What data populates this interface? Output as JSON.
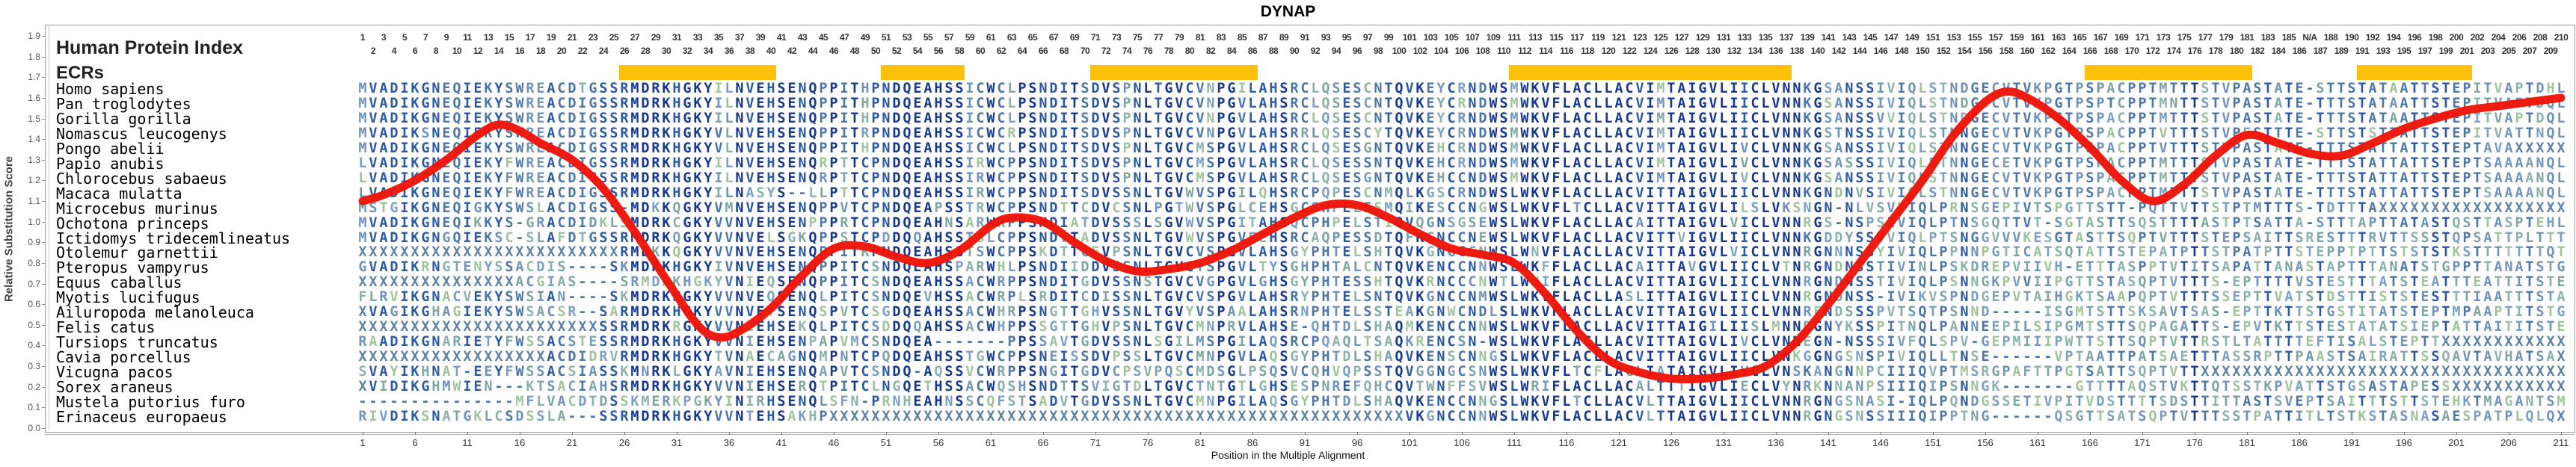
{
  "title": "DYNAP",
  "y_axis": {
    "label": "Relative Substitution Score",
    "min": 0.0,
    "max": 1.9,
    "step": 0.1
  },
  "x_axis": {
    "label": "Position in the Multiple Alignment",
    "tick_start": 1,
    "tick_step": 5,
    "tick_end": 211
  },
  "alignment": {
    "left_title": "Human Protein Index",
    "ecr_label": "ECRs",
    "columns": 211,
    "index_na_column": 187,
    "na_label": "N/A",
    "ecr_regions": [
      [
        26,
        40
      ],
      [
        51,
        58
      ],
      [
        71,
        86
      ],
      [
        111,
        137
      ],
      [
        166,
        181
      ],
      [
        192,
        202
      ]
    ],
    "species": [
      {
        "name": "Homo sapiens",
        "seq": "MVADIKGNEQIEKYSWREACDTGSSRMDRKHGKYILNVEHSENQPPITHPNDQEAHSSICWCLPSNDITSDVSPNLTGVCVNPGILAHSRCLQSESCNTQVKEYCRNDWSMWKVFLACLLACVIMTAIGVLIICLVNNKGSANSSIVIQLSTNDGECVTVKPGTPSPACPPTMTTTSTVPASTATE-STTSTATAATTSTEPITVAPTDHL"
      },
      {
        "name": "Pan troglodytes",
        "seq": "MVADIKGNEQIEKYSWREACDIGSSRMDRKHGKYILNVEHSENQPPITHPNDQEAHSSICWCLPSNDITSDVSPNLTGVCVNPGVLAHSRCLQSESCNTQVKEYCRNDWSMWKVFLACLLACVIMTAIGVLIICLVNNKGSANSSIVIQLSTNDGDCVTVKPGTPSPTCPPTMNTTSTVPASTATE-TTTSTATAATTSTEPITVAPTDQL"
      },
      {
        "name": "Gorilla gorilla",
        "seq": "MVADIKGNEQIEKYSWREACDIGSSRMDRKHGKYILNVEHSENQPPITHPNDQEAHSSICWCLPSNDITSDVSPNLTGVCVNPGVLAHSRCLQSESCNTQVKEYCRNDWSMWKVFLACLLACVIMTAIGVLIICLVNNKGSANSSVVIQLSTNDGECVTVKPGTPSPACPPTMTTTSTVPASTATE-TTTSTATAATTSTEPITVAPTDQL"
      },
      {
        "name": "Nomascus leucogenys",
        "seq": "MVADIKSNEQIEKYSWREACDIGSSRMDRKHGKYVLNVEHSENQPPITRPNDQEAHSSICWCRPSNDITSDVSPNLTGVCVNPGVLAHSRRLQSESCYTQVKEYCRNDWSMWKVFLACLLACVIMTAIGVLIICLVNNKGSTNSSIVIQLSTNNGECVTVKPGTPSPACPPTVTTTSTVPESTTTE-STTSTSTTATTSTEPITVATTNQL"
      },
      {
        "name": "Pongo abelii",
        "seq": "MVADIKGNEQIEKYSWREACDIGSSRMDRKHGKYVLNVEHSENQPPITHPNDQEAHSSICWCLPSNDITSDVSPNLTGVCMSPGVLAHSRCLQSESGNTQVKEHCRNDWSMWKVFLACLLACVIMTAIGVLIVCLVNNKGSANSSIVIQLSTNNGECVTVKPGTPSPACPPTVTTTSTVPASTATE-TTTSTATTATTSTEPTAVAXXXXX"
      },
      {
        "name": "Papio anubis",
        "seq": "LVADIKGNEQIEKYFWREACDIGSSRMDRKHGKYILNVEHSENQRPTTCPNDQEAHSSIRWCPPSNDITSDVSPNLTGVCMSPGVLAHSRCLQSESSNTQVKEHCRNDWSMWKVFLACLLACVIMTAIGVLIVCLVNNKGSASSSIVIQLSTNNGECETVKPGTPSPACPPTMTTTSTVPASTATE-TTTSTATTATTSTEPTSAAAANQL"
      },
      {
        "name": "Chlorocebus sabaeus",
        "seq": "LVADIKGNEQIEKYFWREACDIGSSRMDRKHGKYILNVEHSENQRPTTCPNDQEAHSSIRWCPPSNDITSDVSPNLTGVCMSPGVLAHSRCLQSESGNTQVKEHCCNDWSMWKVFLACLLACVIMTAIGVLIVCLVNNKGSANSSIVIQLSTNNGECVTVKPGTPSPACPPTMTTTSTVPASTATE-TTTSTATTATTSTEPTSAAAANQL"
      },
      {
        "name": "Macaca mulatta",
        "seq": "LVADIKGNEQIEKYFWREACDIGSSRMDRKHGKYILNASYS--LLPTTCPNDQEAHSSIRWCPPSNDITSDVSSNLTGVWVSPGILQHSRCPQPESCNMQLKGSCRNDWSLWKVFLACLLACVITTAIGVLIICLVNNKGNDNVSIVIQLSTNNGECVTVKPGTPSPACPPTMTTTSTVPASTATE-TTTSTATTATTSTEPTSAAAANQL"
      },
      {
        "name": "Microcebus murinus",
        "seq": "MSTGIKGNEQIGKYSWSLACDIGSS-MDKKQGKYVMNVEHSENQPPVTCPNDQEAPSSTRWCPPSNDTTCDVCSNLPGTWVSPGLCEHSGCSHPELSSMQIKESCCNGWSLWKVFLTCLLACVITTAIGVLILSLVKSNGN-NLVSVVIQLPRNSGEPIVTSPGTTSTT-PQTTVTTSTPTMTTTS-TDTTTAXXXXXXXXXXXXXXXXXX"
      },
      {
        "name": "Ochotona princeps",
        "seq": "MVADIKGNEQIKKYS-GRACDIDKLSMDRKCGKYVVNVEHSENPPPRTCPNDQEAHNSARWRPPSNDIATDVSSSLSGVWVSPGITAHSQCPHPELSTIQVQGNSGSEWSLWKVFLACLLACAITTAIGVLVICLVNNRGS-NSPSIVIQLPTNSGQTTVT-SGTASTTSQSTTTTASTPTSATTA-STTTAPTTATASTQSTTASPTEHL"
      },
      {
        "name": "Ictidomys tridecemlineatus",
        "seq": "MVADIKGNGQIEKSC-SLAFDTGSSRMDRKQGKYVVNVELSGKQPPSTCPDDQQAHSSTSLCPPSNDVTADVSSNLTGVWVSPGVFEHSRCAQPESSDTQFKGNCCNEWSLWKVFLACLLACVITTVIGVLIICLVNNKGDDYSSVVIQLPTSNGGVVVKESGTASTTSQPTVTTTSTEPSAITTSRESTTTRVTTSSSTQPSATTPLTTT"
      },
      {
        "name": "Otolemur garnettii",
        "seq": "XXXXXXXXXXXXXXXXXXXXXXXXXRMDKKQGKYVVNVEHSENQPPITRPNDQEAHSSTSWCPPSKDTTCEVPSNLTGVCVSPGVLAHSGYPHTELSHTQVKGNGCCNWSLWNVFLACLLACVITTAIGVLVICLVNNRGNNNSSYIVIQLPPNNPGTICATSQTATTSTEPATPTTSTPATPTTSTEPPTPTTSTSTSTKSTTTTTTTQT"
      },
      {
        "name": "Pteropus vampyrus",
        "seq": "GVADIKRNGTENYSSACDIS----SKMDRKHGKYIVNVEHSENQPPITCSNDQEAHSPARWHLPSNDIIDDVSSNLTGVCTSPGVLTYSGHPHTALCNTQVKENCCNNWSLWKFFLACLLACAITTAVGVLIICLVTNRGNDNSSTIVINLPSKDREPVIIVH-ETTTASPPTVTITSAPATTANASTAPTTTANATSTGPPTTANATSTG"
      },
      {
        "name": "Equus caballus",
        "seq": "XXXXXXXXXXXXXXXACGIAS----SRMDRKHGKYVNIEQSENQPPITCSNDQEAHSSACWRPPSNDITGDVSSNSTGVCVGPGVLGHSGYPHTESSHTQVKRNCCCNWTLWNIFLACLLACVITTAIGVLIICLVNNRGNDNSSTIVIQLPSNNGKPVVIIPGTTSTASQPTVTTTS-EPTTTTVSTESTTTATSTEATTTEATTITSTE"
      },
      {
        "name": "Myotis lucifugus",
        "seq": "FLRVIKGNACVEKYSWSIAN----SKMDRKHGKYVVNVEQSENQLPITCSNDQEVHSSACWRPLSRDITCDISSNLTGVCVSPGVLAHSRYPHTELSNTQVKGNCCNMWSLWKVFLACLLASLITTAIGVLIICLVNNRGNDNSS-IVIKVSPNDGEPVTAIHGKTSAAPQPTVTTTSSEPTTVATSTDSTTISTSTESTTTIAATTTSTA"
      },
      {
        "name": "Ailuropoda melanoleuca",
        "seq": "XVAGIKGHAGIEKYSWSACSR--SARMDRKHGKYVVNVEYSENQSPVTCSGDQEAHSSACWHRPSNGTTGHVSSNLTGVYVSPAALAHSRNPHTELSSTEAKGNWCNDLSLWKVFLACLLACVITTAIGVLIICLVNNRENDSSSPVTSQTPSNND-----ISGMTSTTSKSAVTSAS-EPTTKTTSTGSTITATSTEPTMPAAPTITSTG"
      },
      {
        "name": "Felis catus",
        "seq": "XXXXXXXXXXXXXXXXXXXXXXXSSRMDRKRGKYVVNIEHSEKQLPITCSDDQQAHSSACWHPPSSGTTGHVPSNLTGVCMNPRVLAHSE-QHTDLSHAQMKENCCNNWSLWKVFLACLLACVITTAIGILIISLMNNRGNYKSSPITNQLPANNEEPILSIPGMTSTTSQPAGATTS-EPVTKTTSTESTATATSIEPTATTAITITSTE"
      },
      {
        "name": "Tursiops truncatus",
        "seq": "RAADIKGNARIETYFWSSACSTESSRMDRKHGKYVVNIEHSENPAPVMCSNDQEA-------PPSSAVTGDVSSNLSGILMSPGILAQSRCPQAQLTSAQKRENCSN-WSLWKVFLACLLACVITTAIGVLIVCLVNNEGN-NSSSIVFQLSPV-GEPMIIIPWTTSTTSQPTVTTRSTLTATTTTEFTISALSTEPTTXXXXXXXXXXXX"
      },
      {
        "name": "Cavia porcellus",
        "seq": "XXXXXXXXXXXXXXXXXXACDIDRVRMDRKHGKYTVNAECAGNQMPNTCPQDQEAHSSTGWCPPSNEISSDVPSSLTGVCMNPGVLAQSGYPHTDLSHAQVKENSCNNGSLWKVFLACLLACVITTAIGVLIICLVNKGGNGSNSPIVIQLLTNSE------VPTAATTPATSAETTTASSRPTTPAASTSAIRATTSSQAVTAVHATSAX"
      },
      {
        "name": "Vicugna pacos",
        "seq": "SVAYIKHNAT-EEYFWSSACSIASSKMNRKLGKYAVNIEHSENQAPVTCSNDQ-AQSSVCWRPPSNGITGDVCPSVPQSCMDSGLPSQSVCQHVQPSSTQVGGNGCSNWSLWKVFLTCFLAGLIATAIGVLIVCLVNSKANGNNPCIIIQVPTMSRGPAFTTPGTSATTSQPTVTTXXXXXXXXXXXXXXXXXXXXXXXXXXXXXXXXXXX"
      },
      {
        "name": "Sorex araneus",
        "seq": "XVIDIKGHMWIEN---KTSACIAHSRMDRKHGKYVVNIEHSERQTPITCLNGQETHSSACWQSHSNDTTSVIGTDLTGVCTNTGTLGHSESPNREFQHCQVTWNFFSVWSLWRIFLACLLACALTTTIGVLIECLVYNRKNNANPSIIIQIPSNNGK-------GTTTTAQSTVKTTQTSSTKPVATTSTGSASTAPESSXXXXXXXXXXX"
      },
      {
        "name": "Mustela putorius furo",
        "seq": "---------------MFLVACDTDSSKMERKPGKYINIRHSENQLSFN-PRNHEAHNSSCQFSTSADVTGDVSSNLTGVCMNPGILAQSGYPHTDLSHAQVKENCCNNGSLWKVFLTCLLACVLTTAIGVLIICLVNNRGNGSNASI-IQLPQNDGSSETIVPITVDSTTTTSDSTTITTASTSVEPTSAITTTSTTSTEHKTMAGANTSM"
      },
      {
        "name": "Erinaceus europaeus",
        "seq": "RIVDIKSNATGKLCSDSSLA---SSRMDRKHGKYVVNTEHSAKHPXXXXXXXXXXXXXXXXXXXXXXXXXXXXXXXXXXXXXXXXXXXXXXXXXXXXXXXVKGNCCNNWSLWKVFLACLLACVLTTAIGVLIICLVNNRGNGSNSSIIIQIPPTNG------QSGTTSATSQPTVTTTSSTPATTITLTSTKSTASNASAESPATPLQLQX"
      }
    ]
  },
  "colors": {
    "ecr_bar": "#FDC10A",
    "curve": "#EE1407",
    "seq_navy": "#16388F",
    "seq_blue": "#2C5AA5",
    "seq_mid_blue": "#4D77A9",
    "seq_light_blue": "#7093BB",
    "seq_slate": "#7BA0C4",
    "seq_teal": "#7FA6A2",
    "seq_green": "#9FC49B",
    "seq_green2": "#8BB3AC",
    "seq_x": "#5D82A8",
    "border": "#999999"
  },
  "chart_data": {
    "type": "line",
    "title": "DYNAP",
    "xlabel": "Position in the Multiple Alignment",
    "ylabel": "Relative Substitution Score",
    "xlim": [
      1,
      211
    ],
    "ylim": [
      0,
      1.9
    ],
    "grid": false,
    "legend_position": "none",
    "series": [
      {
        "name": "Relative Substitution Score",
        "x": [
          1,
          3,
          6,
          9,
          12,
          14,
          16,
          18,
          21,
          24,
          27,
          30,
          33,
          35,
          37,
          40,
          43,
          46,
          49,
          52,
          55,
          58,
          61,
          63,
          66,
          69,
          72,
          75,
          78,
          81,
          84,
          87,
          90,
          93,
          96,
          99,
          102,
          105,
          108,
          111,
          114,
          117,
          120,
          123,
          126,
          129,
          132,
          135,
          138,
          141,
          144,
          147,
          150,
          153,
          156,
          158,
          160,
          163,
          166,
          169,
          172,
          175,
          178,
          181,
          184,
          187,
          190,
          193,
          196,
          199,
          202,
          205,
          208,
          211
        ],
        "y": [
          1.1,
          1.13,
          1.2,
          1.3,
          1.42,
          1.47,
          1.44,
          1.38,
          1.3,
          1.16,
          0.95,
          0.72,
          0.5,
          0.44,
          0.47,
          0.58,
          0.74,
          0.87,
          0.88,
          0.83,
          0.8,
          0.86,
          0.98,
          1.02,
          1.0,
          0.9,
          0.81,
          0.76,
          0.77,
          0.8,
          0.86,
          0.94,
          1.02,
          1.08,
          1.08,
          1.02,
          0.94,
          0.87,
          0.84,
          0.8,
          0.65,
          0.47,
          0.33,
          0.27,
          0.24,
          0.24,
          0.26,
          0.3,
          0.42,
          0.6,
          0.8,
          1.0,
          1.2,
          1.42,
          1.58,
          1.63,
          1.6,
          1.5,
          1.36,
          1.2,
          1.1,
          1.18,
          1.32,
          1.42,
          1.38,
          1.33,
          1.32,
          1.38,
          1.45,
          1.5,
          1.54,
          1.56,
          1.58,
          1.6
        ]
      }
    ]
  }
}
